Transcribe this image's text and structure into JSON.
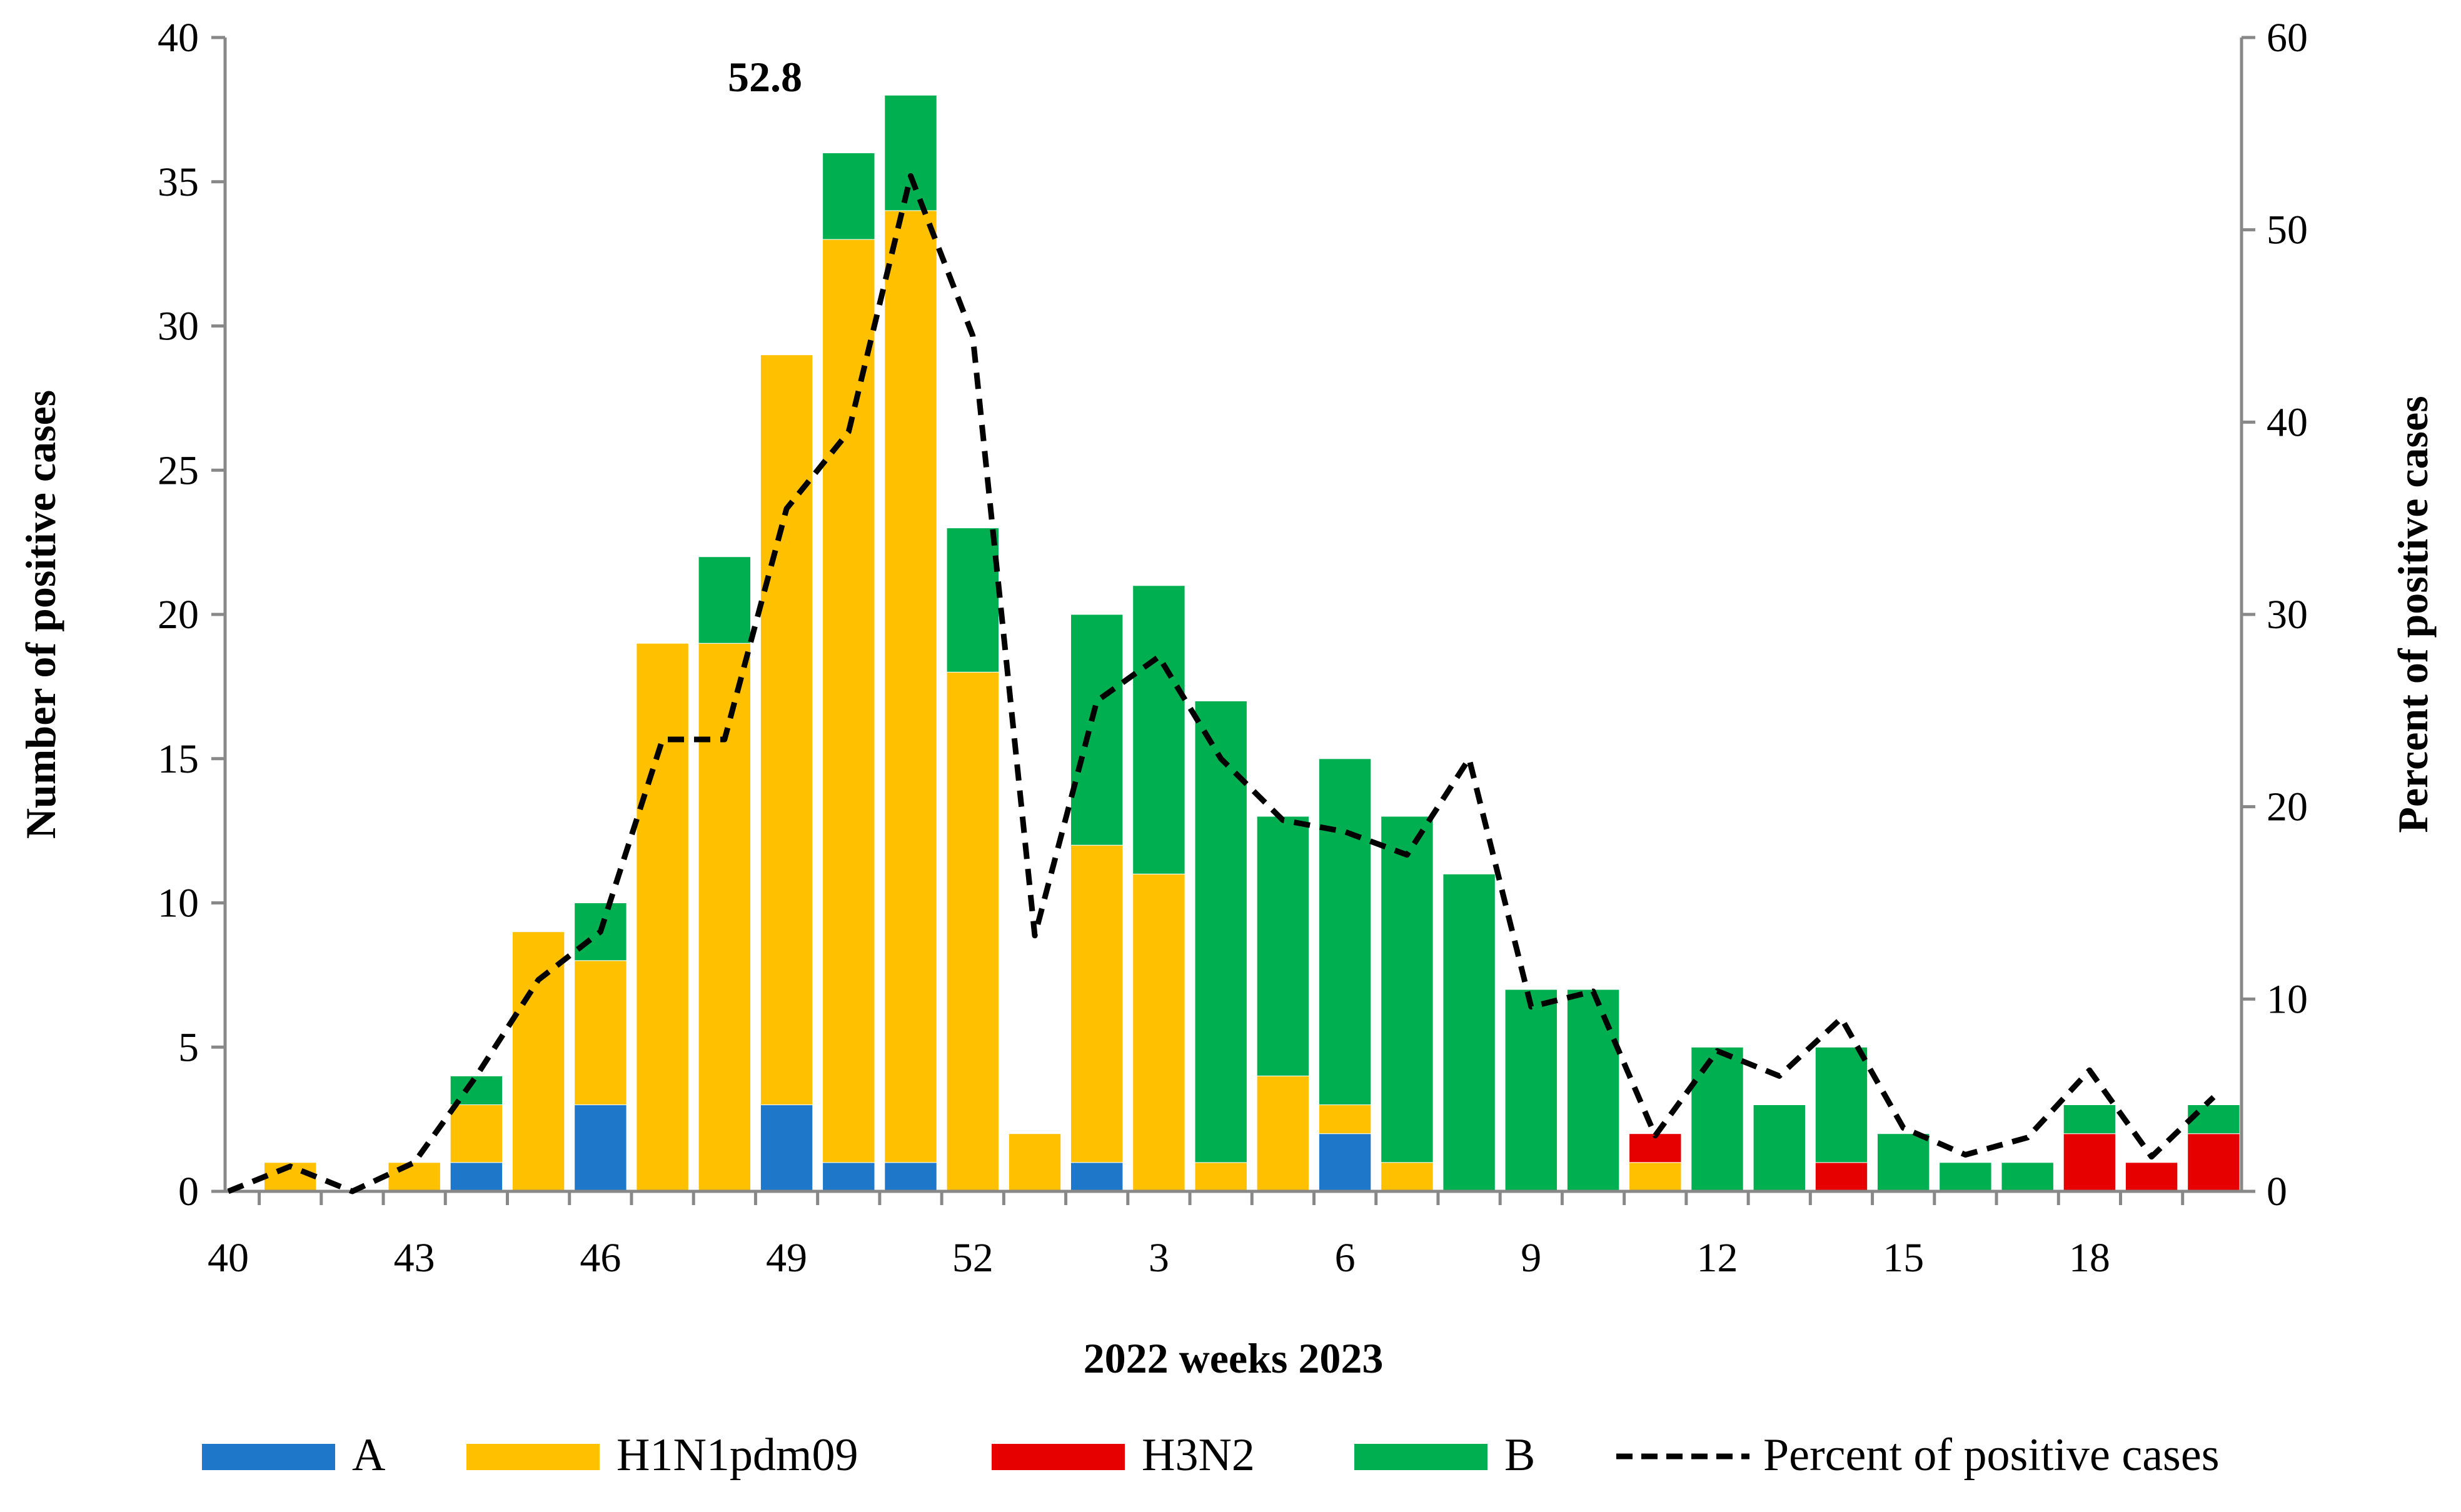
{
  "chart_data": {
    "type": "bar",
    "stacked": true,
    "title": "",
    "xlabel": "2022 weeks 2023",
    "ylabel": "Number of positive cases",
    "y2label": "Percent of positive cases",
    "ylim": [
      0,
      40
    ],
    "y2lim": [
      0,
      60
    ],
    "yticks": [
      0,
      5,
      10,
      15,
      20,
      25,
      30,
      35,
      40
    ],
    "y2ticks": [
      0,
      10,
      20,
      30,
      40,
      50,
      60
    ],
    "categories": [
      "40",
      "41",
      "42",
      "43",
      "44",
      "45",
      "46",
      "47",
      "48",
      "49",
      "50",
      "51",
      "52",
      "1",
      "2",
      "3",
      "4",
      "5",
      "6",
      "7",
      "8",
      "9",
      "10",
      "11",
      "12",
      "13",
      "14",
      "15",
      "16",
      "17",
      "18",
      "19",
      "20"
    ],
    "x_tick_labels": [
      "40",
      "",
      "",
      "43",
      "",
      "",
      "46",
      "",
      "",
      "49",
      "",
      "",
      "52",
      "",
      "",
      "3",
      "",
      "",
      "6",
      "",
      "",
      "9",
      "",
      "",
      "12",
      "",
      "",
      "15",
      "",
      "",
      "18",
      "",
      ""
    ],
    "series": [
      {
        "name": "A",
        "color": "#1f77c9",
        "values": [
          0,
          0,
          0,
          0,
          1,
          0,
          3,
          0,
          0,
          3,
          1,
          1,
          0,
          0,
          1,
          0,
          0,
          0,
          2,
          0,
          0,
          0,
          0,
          0,
          0,
          0,
          0,
          0,
          0,
          0,
          0,
          0,
          0
        ]
      },
      {
        "name": "H1N1pdm09",
        "color": "#ffc000",
        "values": [
          0,
          1,
          0,
          1,
          2,
          9,
          5,
          19,
          19,
          26,
          32,
          33,
          18,
          2,
          11,
          11,
          1,
          4,
          1,
          1,
          0,
          0,
          0,
          1,
          0,
          0,
          0,
          0,
          0,
          0,
          0,
          0,
          0
        ]
      },
      {
        "name": "H3N2",
        "color": "#e60000",
        "values": [
          0,
          0,
          0,
          0,
          0,
          0,
          0,
          0,
          0,
          0,
          0,
          0,
          0,
          0,
          0,
          0,
          0,
          0,
          0,
          0,
          0,
          0,
          0,
          1,
          0,
          0,
          1,
          0,
          0,
          0,
          2,
          1,
          2
        ]
      },
      {
        "name": "B",
        "color": "#00b050",
        "values": [
          0,
          0,
          0,
          0,
          1,
          0,
          2,
          0,
          3,
          0,
          3,
          4,
          5,
          0,
          8,
          10,
          16,
          9,
          12,
          12,
          11,
          7,
          7,
          0,
          5,
          3,
          4,
          2,
          1,
          1,
          1,
          0,
          1
        ]
      }
    ],
    "line_series": {
      "name": "Percent of positive cases",
      "axis": "right",
      "style": "dashed",
      "color": "#000000",
      "values": [
        0,
        1.3,
        0,
        1.5,
        6,
        11,
        13.5,
        23.5,
        23.5,
        35.5,
        39.5,
        52.8,
        44.5,
        13.3,
        25.5,
        27.8,
        22.5,
        19.3,
        18.7,
        17.5,
        22.5,
        9.6,
        10.4,
        2.9,
        7.3,
        6,
        9,
        3.3,
        1.9,
        2.8,
        6.3,
        1.8,
        4.9
      ]
    },
    "annotations": [
      {
        "text": "52.8",
        "category": "51"
      }
    ],
    "legend_position": "bottom"
  }
}
